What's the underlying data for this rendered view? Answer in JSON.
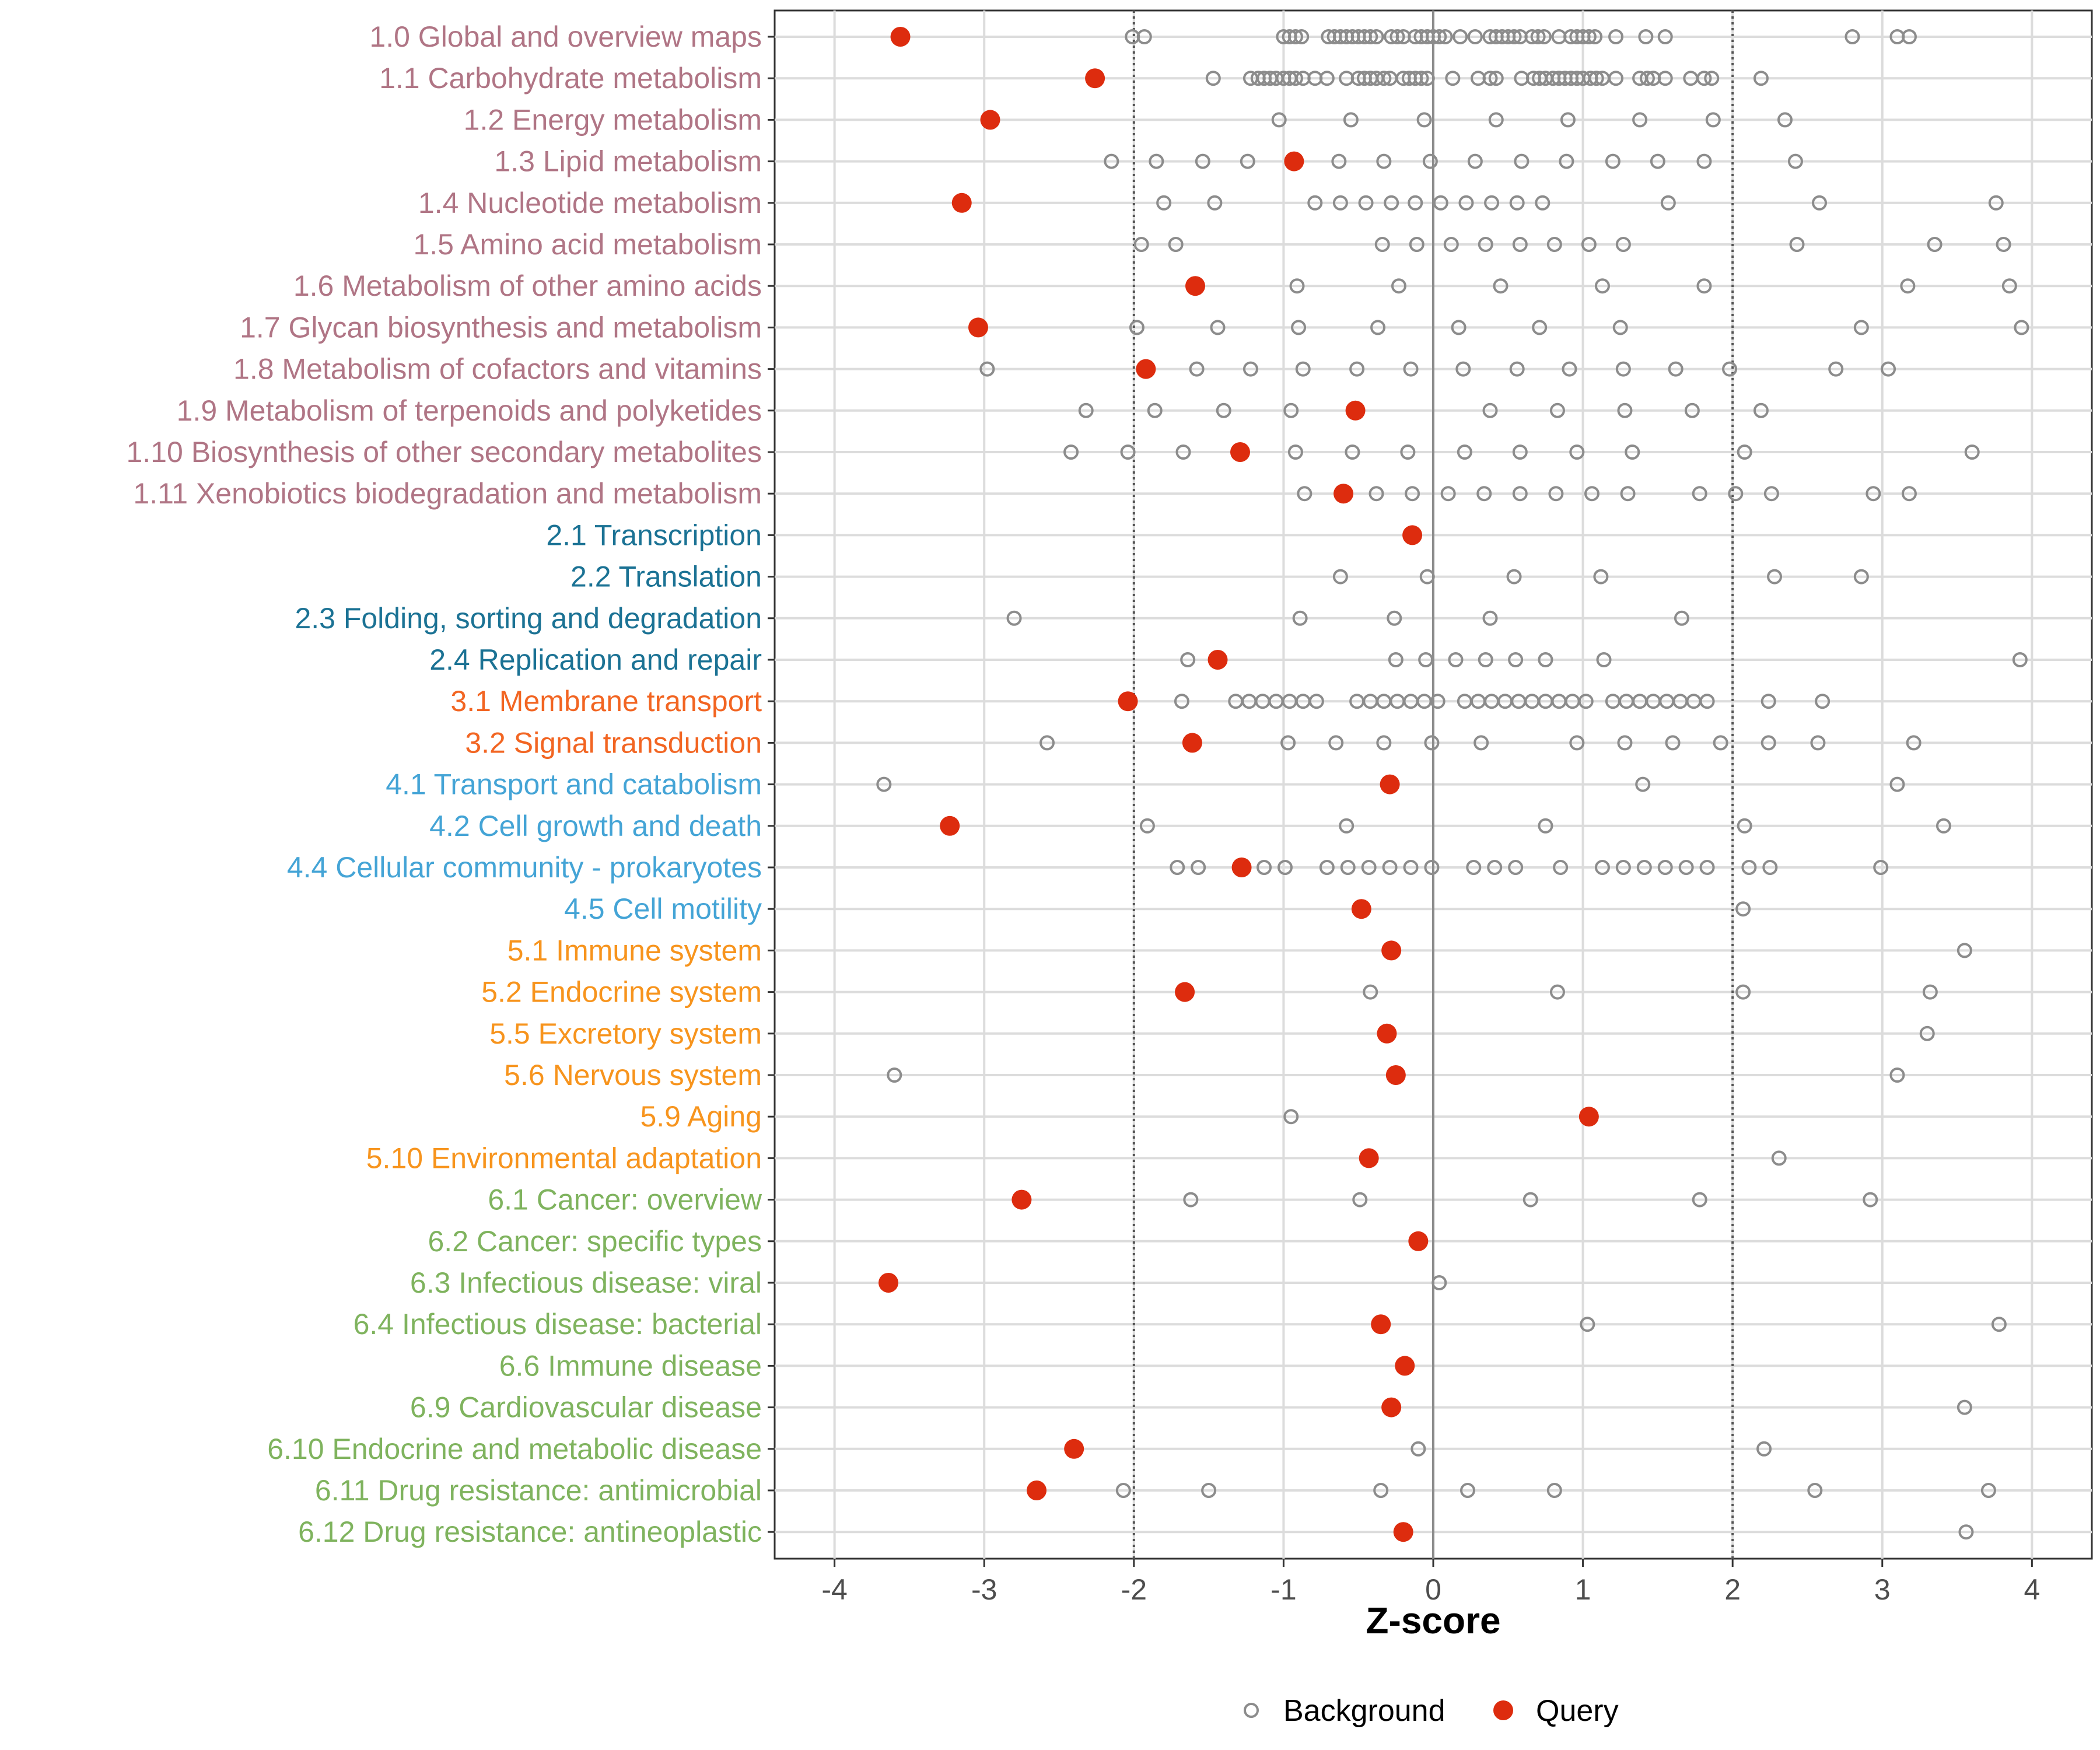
{
  "chart_data": {
    "type": "scatter",
    "xlabel": "Z-score",
    "xlim": [
      -4.4,
      4.4
    ],
    "xticks": [
      -4,
      -3,
      -2,
      -1,
      0,
      1,
      2,
      3,
      4
    ],
    "xtick_labels": [
      "-4",
      "-3",
      "-2",
      "-1",
      "0",
      "1",
      "2",
      "3",
      "4"
    ],
    "reference_lines": {
      "dotted": [
        -2,
        2
      ],
      "solid": [
        0
      ]
    },
    "grid": true,
    "legend": {
      "position": "bottom",
      "entries": [
        {
          "name": "Background",
          "marker": "open-circle",
          "color": "#8c8c8c"
        },
        {
          "name": "Query",
          "marker": "filled-circle",
          "color": "#dd2c0e"
        }
      ]
    },
    "group_colors": {
      "1": "#b07585",
      "2": "#1b7294",
      "3": "#f26522",
      "4": "#44a4d6",
      "5": "#f7941d",
      "6": "#7fb35e"
    },
    "rows": [
      {
        "label": "1.0 Global and overview maps",
        "group": "1",
        "query": -3.56,
        "background": [
          -2.01,
          -1.93,
          -1.0,
          -0.96,
          -0.92,
          -0.88,
          -0.7,
          -0.66,
          -0.62,
          -0.58,
          -0.54,
          -0.5,
          -0.46,
          -0.42,
          -0.38,
          -0.28,
          -0.24,
          -0.2,
          -0.12,
          -0.08,
          -0.04,
          0.0,
          0.04,
          0.08,
          0.18,
          0.28,
          0.38,
          0.42,
          0.46,
          0.5,
          0.54,
          0.58,
          0.66,
          0.7,
          0.74,
          0.84,
          0.92,
          0.96,
          1.0,
          1.04,
          1.08,
          1.22,
          1.42,
          1.55,
          2.8,
          3.1,
          3.18
        ]
      },
      {
        "label": "1.1 Carbohydrate metabolism",
        "group": "1",
        "query": -2.26,
        "background": [
          -1.47,
          -1.22,
          -1.17,
          -1.13,
          -1.09,
          -1.05,
          -1.0,
          -0.96,
          -0.92,
          -0.87,
          -0.79,
          -0.71,
          -0.58,
          -0.5,
          -0.46,
          -0.42,
          -0.38,
          -0.33,
          -0.29,
          -0.2,
          -0.16,
          -0.12,
          -0.08,
          -0.04,
          0.13,
          0.3,
          0.38,
          0.42,
          0.59,
          0.67,
          0.71,
          0.75,
          0.8,
          0.84,
          0.88,
          0.92,
          0.96,
          1.0,
          1.05,
          1.09,
          1.13,
          1.22,
          1.38,
          1.43,
          1.47,
          1.55,
          1.72,
          1.81,
          1.86,
          2.19
        ]
      },
      {
        "label": "1.2 Energy metabolism",
        "group": "1",
        "query": -2.96,
        "background": [
          -1.03,
          -0.55,
          -0.06,
          0.42,
          0.9,
          1.38,
          1.87,
          2.35
        ]
      },
      {
        "label": "1.3 Lipid metabolism",
        "group": "1",
        "query": -0.93,
        "background": [
          -2.15,
          -1.85,
          -1.54,
          -1.24,
          -0.63,
          -0.33,
          -0.02,
          0.28,
          0.59,
          0.89,
          1.2,
          1.5,
          1.81,
          2.42
        ]
      },
      {
        "label": "1.4 Nucleotide metabolism",
        "group": "1",
        "query": -3.15,
        "background": [
          -1.8,
          -1.46,
          -0.79,
          -0.62,
          -0.45,
          -0.28,
          -0.12,
          0.05,
          0.22,
          0.39,
          0.56,
          0.73,
          1.57,
          2.58,
          3.76
        ]
      },
      {
        "label": "1.5 Amino acid metabolism",
        "group": "1",
        "query": null,
        "background": [
          -1.95,
          -1.72,
          -0.34,
          -0.11,
          0.12,
          0.35,
          0.58,
          0.81,
          1.04,
          1.27,
          2.43,
          3.35,
          3.81
        ]
      },
      {
        "label": "1.6 Metabolism of other amino acids",
        "group": "1",
        "query": -1.59,
        "background": [
          -0.91,
          -0.23,
          0.45,
          1.13,
          1.81,
          3.17,
          3.85
        ]
      },
      {
        "label": "1.7 Glycan biosynthesis and metabolism",
        "group": "1",
        "query": -3.04,
        "background": [
          -1.98,
          -1.44,
          -0.9,
          -0.37,
          0.17,
          0.71,
          1.25,
          2.86,
          3.93
        ]
      },
      {
        "label": "1.8 Metabolism of cofactors and vitamins",
        "group": "1",
        "query": -1.92,
        "background": [
          -2.98,
          -1.58,
          -1.22,
          -0.87,
          -0.51,
          -0.15,
          0.2,
          0.56,
          0.91,
          1.27,
          1.62,
          1.98,
          2.69,
          3.04
        ]
      },
      {
        "label": "1.9 Metabolism of terpenoids and polyketides",
        "group": "1",
        "query": -0.52,
        "background": [
          -2.32,
          -1.86,
          -1.4,
          -0.95,
          0.38,
          0.83,
          1.28,
          1.73,
          2.19
        ]
      },
      {
        "label": "1.10 Biosynthesis of other secondary metabolites",
        "group": "1",
        "query": -1.29,
        "background": [
          -2.42,
          -2.04,
          -1.67,
          -0.92,
          -0.54,
          -0.17,
          0.21,
          0.58,
          0.96,
          1.33,
          2.08,
          3.6
        ]
      },
      {
        "label": "1.11 Xenobiotics biodegradation and metabolism",
        "group": "1",
        "query": -0.6,
        "background": [
          -0.86,
          -0.38,
          -0.14,
          0.1,
          0.34,
          0.58,
          0.82,
          1.06,
          1.3,
          1.78,
          2.02,
          2.26,
          2.94,
          3.18
        ]
      },
      {
        "label": "2.1 Transcription",
        "group": "2",
        "query": -0.14,
        "background": []
      },
      {
        "label": "2.2 Translation",
        "group": "2",
        "query": null,
        "background": [
          -0.62,
          -0.04,
          0.54,
          1.12,
          2.28,
          2.86
        ]
      },
      {
        "label": "2.3 Folding, sorting and degradation",
        "group": "2",
        "query": null,
        "background": [
          -2.8,
          -0.89,
          -0.26,
          0.38,
          1.66
        ]
      },
      {
        "label": "2.4 Replication and repair",
        "group": "2",
        "query": -1.44,
        "background": [
          -1.64,
          -0.25,
          -0.05,
          0.15,
          0.35,
          0.55,
          0.75,
          1.14,
          3.92
        ]
      },
      {
        "label": "3.1 Membrane transport",
        "group": "3",
        "query": -2.04,
        "background": [
          -1.68,
          -1.32,
          -1.23,
          -1.14,
          -1.05,
          -0.96,
          -0.87,
          -0.78,
          -0.51,
          -0.42,
          -0.33,
          -0.24,
          -0.15,
          -0.06,
          0.03,
          0.21,
          0.3,
          0.39,
          0.48,
          0.57,
          0.66,
          0.75,
          0.84,
          0.93,
          1.02,
          1.2,
          1.29,
          1.38,
          1.47,
          1.56,
          1.65,
          1.74,
          1.83,
          2.24,
          2.6
        ]
      },
      {
        "label": "3.2 Signal transduction",
        "group": "3",
        "query": -1.61,
        "background": [
          -2.58,
          -0.97,
          -0.65,
          -0.33,
          -0.01,
          0.32,
          0.96,
          1.28,
          1.6,
          1.92,
          2.24,
          2.57,
          3.21
        ]
      },
      {
        "label": "4.1 Transport and catabolism",
        "group": "4",
        "query": -0.29,
        "background": [
          -3.67,
          1.4,
          3.1
        ]
      },
      {
        "label": "4.2 Cell growth and death",
        "group": "4",
        "query": -3.23,
        "background": [
          -1.91,
          -0.58,
          0.75,
          2.08,
          3.41
        ]
      },
      {
        "label": "4.4 Cellular community - prokaryotes",
        "group": "4",
        "query": -1.28,
        "background": [
          -1.71,
          -1.57,
          -1.13,
          -0.99,
          -0.71,
          -0.57,
          -0.43,
          -0.29,
          -0.15,
          -0.01,
          0.27,
          0.41,
          0.55,
          0.85,
          1.13,
          1.27,
          1.41,
          1.55,
          1.69,
          1.83,
          2.11,
          2.25,
          2.99
        ]
      },
      {
        "label": "4.5 Cell motility",
        "group": "4",
        "query": -0.48,
        "background": [
          2.07
        ]
      },
      {
        "label": "5.1 Immune system",
        "group": "5",
        "query": -0.28,
        "background": [
          3.55
        ]
      },
      {
        "label": "5.2 Endocrine system",
        "group": "5",
        "query": -1.66,
        "background": [
          -0.42,
          0.83,
          2.07,
          3.32
        ]
      },
      {
        "label": "5.5 Excretory system",
        "group": "5",
        "query": -0.31,
        "background": [
          3.3
        ]
      },
      {
        "label": "5.6 Nervous system",
        "group": "5",
        "query": -0.25,
        "background": [
          -3.6,
          3.1
        ]
      },
      {
        "label": "5.9 Aging",
        "group": "5",
        "query": 1.04,
        "background": [
          -0.95
        ]
      },
      {
        "label": "5.10 Environmental adaptation",
        "group": "5",
        "query": -0.43,
        "background": [
          2.31
        ]
      },
      {
        "label": "6.1 Cancer: overview",
        "group": "6",
        "query": -2.75,
        "background": [
          -1.62,
          -0.49,
          0.65,
          1.78,
          2.92
        ]
      },
      {
        "label": "6.2 Cancer: specific types",
        "group": "6",
        "query": -0.1,
        "background": []
      },
      {
        "label": "6.3 Infectious disease: viral",
        "group": "6",
        "query": -3.64,
        "background": [
          0.04
        ]
      },
      {
        "label": "6.4 Infectious disease: bacterial",
        "group": "6",
        "query": -0.35,
        "background": [
          1.03,
          3.78
        ]
      },
      {
        "label": "6.6 Immune disease",
        "group": "6",
        "query": -0.19,
        "background": []
      },
      {
        "label": "6.9 Cardiovascular disease",
        "group": "6",
        "query": -0.28,
        "background": [
          3.55
        ]
      },
      {
        "label": "6.10 Endocrine and metabolic disease",
        "group": "6",
        "query": -2.4,
        "background": [
          -0.1,
          2.21
        ]
      },
      {
        "label": "6.11 Drug resistance: antimicrobial",
        "group": "6",
        "query": -2.65,
        "background": [
          -2.07,
          -1.5,
          -0.35,
          0.23,
          0.81,
          2.55,
          3.71
        ]
      },
      {
        "label": "6.12 Drug resistance: antineoplastic",
        "group": "6",
        "query": -0.2,
        "background": [
          3.56
        ]
      }
    ]
  }
}
